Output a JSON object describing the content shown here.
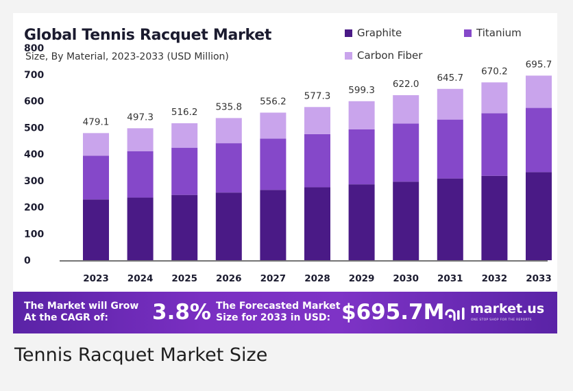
{
  "chart_data": {
    "type": "bar",
    "stacked": true,
    "title": "Global Tennis Racquet Market",
    "subtitle": "Size, By Material, 2023-2033 (USD Million)",
    "categories": [
      "2023",
      "2024",
      "2025",
      "2026",
      "2027",
      "2028",
      "2029",
      "2030",
      "2031",
      "2032",
      "2033"
    ],
    "series": [
      {
        "name": "Graphite",
        "color": "#4a1a86",
        "values": [
          229,
          236,
          246,
          255,
          265,
          275,
          286,
          296,
          308,
          318,
          332
        ]
      },
      {
        "name": "Titanium",
        "color": "#8548c9",
        "values": [
          165,
          175,
          178,
          186,
          193,
          200,
          207,
          219,
          222,
          236,
          242
        ]
      },
      {
        "name": "Carbon Fiber",
        "color": "#c9a4ec",
        "values": [
          85.1,
          86.3,
          92.2,
          94.8,
          98.2,
          102.3,
          106.3,
          107.0,
          115.7,
          116.2,
          121.7
        ]
      }
    ],
    "totals": [
      "479.1",
      "497.3",
      "516.2",
      "535.8",
      "556.2",
      "577.3",
      "599.3",
      "622.0",
      "645.7",
      "670.2",
      "695.7"
    ],
    "totals_values": [
      479.1,
      497.3,
      516.2,
      535.8,
      556.2,
      577.3,
      599.3,
      622.0,
      645.7,
      670.2,
      695.7
    ],
    "yticks": [
      "0",
      "100",
      "200",
      "300",
      "400",
      "500",
      "600",
      "700",
      "800"
    ],
    "ylim": [
      0,
      800
    ],
    "xlabel": "",
    "ylabel": "",
    "legend": "top-right",
    "grid": false
  },
  "banner": {
    "cagr_label_line1": "The Market will Grow",
    "cagr_label_line2": "At the CAGR of:",
    "cagr_value": "3.8%",
    "forecast_label_line1": "The Forecasted Market",
    "forecast_label_line2": "Size for 2033 in USD:",
    "forecast_value": "$695.7M",
    "brand": "market.us",
    "brand_tagline": "ONE STOP SHOP FOR THE REPORTS"
  },
  "caption": "Tennis Racquet Market Size",
  "colors": {
    "banner_start": "#5a23a6",
    "banner_end": "#7e33c6",
    "axis": "#222222"
  }
}
